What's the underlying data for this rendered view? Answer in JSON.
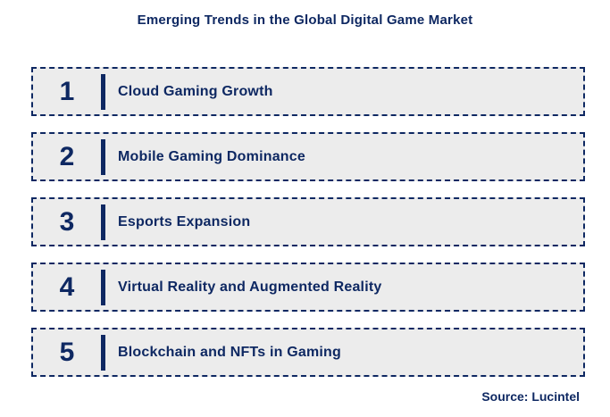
{
  "title": "Emerging Trends in the Global Digital Game Market",
  "rows": [
    {
      "number": "1",
      "label": "Cloud Gaming Growth"
    },
    {
      "number": "2",
      "label": "Mobile Gaming Dominance"
    },
    {
      "number": "3",
      "label": "Esports Expansion"
    },
    {
      "number": "4",
      "label": "Virtual Reality and Augmented Reality"
    },
    {
      "number": "5",
      "label": "Blockchain and NFTs in Gaming"
    }
  ],
  "source": "Source: Lucintel",
  "colors": {
    "accent_navy": "#0e2862",
    "row_background": "#ececec",
    "page_background": "#ffffff"
  }
}
